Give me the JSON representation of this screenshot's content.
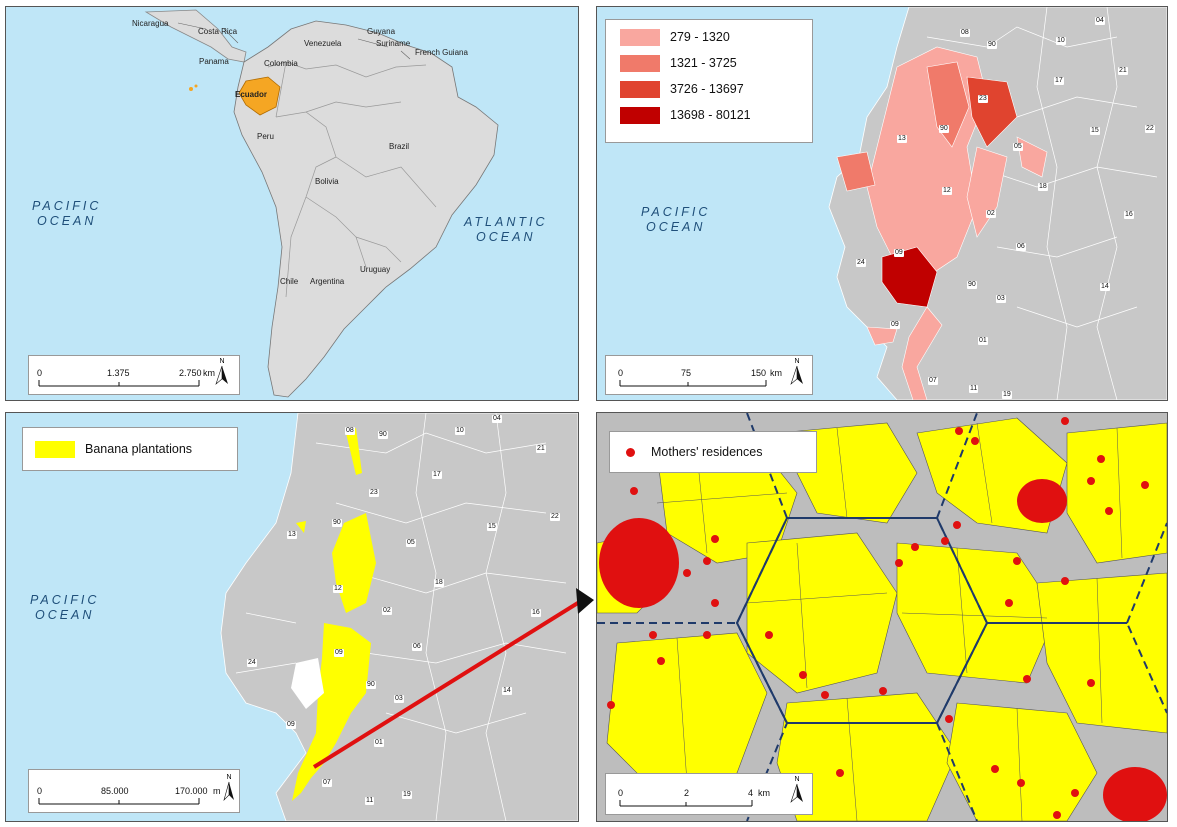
{
  "panels": {
    "south_america": {
      "countries": [
        "Nicaragua",
        "Costa Rica",
        "Panama",
        "Venezuela",
        "Guyana",
        "Suriname",
        "French Guiana",
        "Colombia",
        "Ecuador",
        "Peru",
        "Brazil",
        "Bolivia",
        "Chile",
        "Argentina",
        "Uruguay"
      ],
      "oceans": {
        "pacific": [
          "PACIFIC",
          "OCEAN"
        ],
        "atlantic": [
          "ATLANTIC",
          "OCEAN"
        ]
      },
      "scale": {
        "t0": "0",
        "t1": "1.375",
        "t2": "2.750",
        "unit": "km"
      },
      "north": "N",
      "highlight_color": "#f5a623"
    },
    "incidence": {
      "legend": [
        {
          "label": "279 - 1320",
          "color": "#f9a79f"
        },
        {
          "label": "1321 - 3725",
          "color": "#f07a6a"
        },
        {
          "label": "3726 - 13697",
          "color": "#e0442f"
        },
        {
          "label": "13698 - 80121",
          "color": "#c00000"
        }
      ],
      "ocean": [
        "PACIFIC",
        "OCEAN"
      ],
      "codes": [
        "08",
        "04",
        "90",
        "10",
        "17",
        "21",
        "23",
        "15",
        "22",
        "13",
        "90",
        "05",
        "12",
        "18",
        "16",
        "02",
        "09",
        "06",
        "24",
        "90",
        "03",
        "14",
        "09",
        "01",
        "07",
        "11",
        "19"
      ],
      "scale": {
        "t0": "0",
        "t1": "75",
        "t2": "150",
        "unit": "km"
      },
      "north": "N"
    },
    "plantations": {
      "legend_label": "Banana plantations",
      "legend_color": "#ffff00",
      "ocean": [
        "PACIFIC",
        "OCEAN"
      ],
      "codes": [
        "08",
        "90",
        "10",
        "04",
        "21",
        "23",
        "17",
        "13",
        "90",
        "15",
        "22",
        "05",
        "12",
        "18",
        "16",
        "02",
        "09",
        "06",
        "24",
        "90",
        "03",
        "14",
        "09",
        "01",
        "07",
        "11",
        "19"
      ],
      "scale": {
        "t0": "0",
        "t1": "85.000",
        "t2": "170.000",
        "unit": "m"
      },
      "north": "N",
      "arrow_color": "#e01010"
    },
    "residences": {
      "legend_label": "Mothers' residences",
      "legend_color": "#e01010",
      "scale": {
        "t0": "0",
        "t1": "2",
        "t2": "4",
        "unit": "km"
      },
      "north": "N"
    }
  }
}
